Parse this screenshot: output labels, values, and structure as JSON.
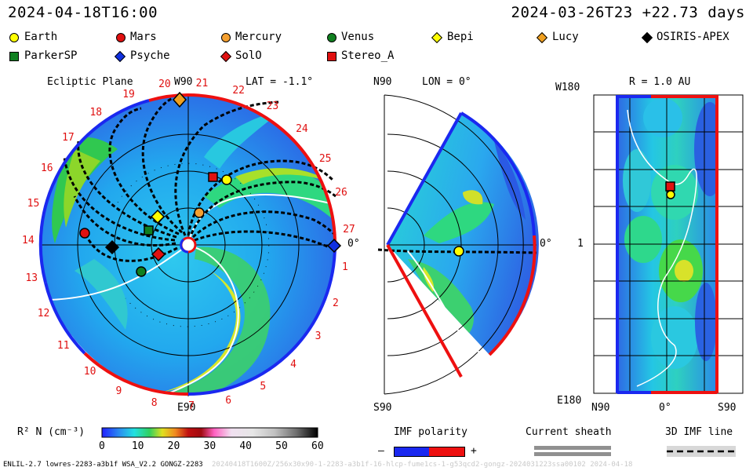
{
  "header": {
    "timestamp_left": "2024-04-18T16:00",
    "timestamp_right": "2024-03-26T23 +22.73 days"
  },
  "legend": [
    {
      "label": "Earth",
      "color": "#ffff00",
      "shape": "circle"
    },
    {
      "label": "Mars",
      "color": "#e01010",
      "shape": "circle"
    },
    {
      "label": "Mercury",
      "color": "#f5a030",
      "shape": "circle"
    },
    {
      "label": "Venus",
      "color": "#108020",
      "shape": "circle"
    },
    {
      "label": "Bepi",
      "color": "#ffff00",
      "shape": "diamond"
    },
    {
      "label": "Lucy",
      "color": "#f0a020",
      "shape": "diamond"
    },
    {
      "label": "OSIRIS-APEX",
      "color": "#000000",
      "shape": "diamond"
    },
    {
      "label": "ParkerSP",
      "color": "#108020",
      "shape": "square"
    },
    {
      "label": "Psyche",
      "color": "#1030e0",
      "shape": "diamond"
    },
    {
      "label": "SolO",
      "color": "#e01010",
      "shape": "diamond"
    },
    {
      "label": "Stereo_A",
      "color": "#e01010",
      "shape": "square"
    }
  ],
  "panel_left": {
    "title": "Ecliptic Plane",
    "w90": "W90",
    "lat": "LAT = -1.1°",
    "e90": "E90",
    "zero": "0°",
    "carrington": [
      "1",
      "2",
      "3",
      "4",
      "5",
      "6",
      "7",
      "8",
      "9",
      "10",
      "11",
      "12",
      "13",
      "14",
      "15",
      "16",
      "17",
      "18",
      "19",
      "20",
      "21",
      "22",
      "23",
      "24",
      "25",
      "26",
      "27"
    ]
  },
  "panel_mid": {
    "n90": "N90",
    "lon": "LON = 0°",
    "s90": "S90",
    "zero": "0°"
  },
  "panel_right": {
    "w180": "W180",
    "r": "R = 1.0 AU",
    "e180": "E180",
    "tick1": "1",
    "n90": "N90",
    "zero": "0°",
    "s90": "S90"
  },
  "colorbar": {
    "title": "R² N (cm⁻³)",
    "ticks": [
      "0",
      "10",
      "20",
      "30",
      "40",
      "50",
      "60"
    ]
  },
  "imf_polarity": {
    "title": "IMF polarity",
    "minus": "–",
    "plus": "+"
  },
  "current_sheath": {
    "title": "Current sheath"
  },
  "imf_line": {
    "title": "3D IMF line"
  },
  "footer": {
    "left": "ENLIL-2.7 lowres-2283-a3b1f WSA_V2.2 GONGZ-2283",
    "right": "20240418T1600Z/256x30x90-1-2283-a3b1f-16-hlcp-fume1cs-1-g53qcd2-gongz-2024031223ssa00102   2024-04-18"
  },
  "colors": {
    "polarity_negative": "#1a28f0",
    "polarity_positive": "#ee1010"
  }
}
